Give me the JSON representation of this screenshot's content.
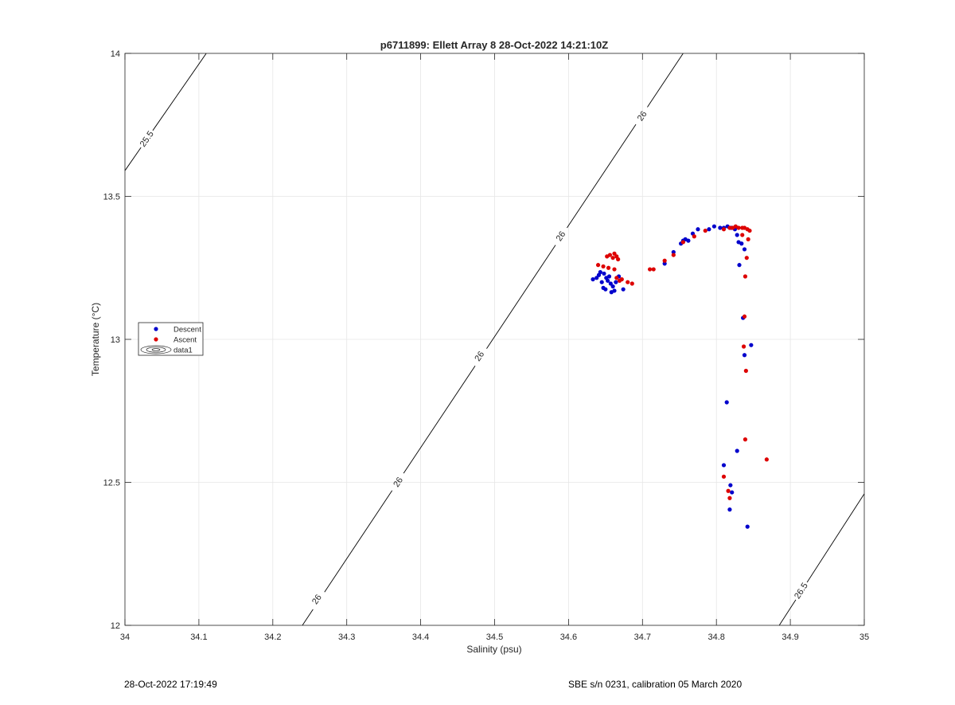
{
  "chart_data": {
    "type": "scatter",
    "title": "p6711899: Ellett Array 8 28-Oct-2022 14:21:10Z",
    "xlabel": "Salinity (psu)",
    "ylabel": "Temperature (°C)",
    "xlim": [
      34,
      35
    ],
    "ylim": [
      12,
      14
    ],
    "x_ticks": [
      "34",
      "34.1",
      "34.2",
      "34.3",
      "34.4",
      "34.5",
      "34.6",
      "34.7",
      "34.8",
      "34.9",
      "35"
    ],
    "y_ticks": [
      "12",
      "12.5",
      "13",
      "13.5",
      "14"
    ],
    "grid": true,
    "legend": {
      "placement": "middle-left",
      "entries": [
        "Descent",
        "Ascent",
        "data1"
      ]
    },
    "contours": [
      {
        "label": "25.5",
        "points": [
          [
            34.0,
            13.59
          ],
          [
            34.11,
            14.0
          ]
        ],
        "label_at": [
          [
            34.03,
            13.7
          ]
        ]
      },
      {
        "label": "26",
        "points": [
          [
            34.24,
            12.0
          ],
          [
            34.755,
            14.0
          ]
        ],
        "label_at": [
          [
            34.26,
            12.09
          ],
          [
            34.37,
            12.5
          ],
          [
            34.48,
            12.94
          ],
          [
            34.59,
            13.36
          ],
          [
            34.7,
            13.78
          ]
        ]
      },
      {
        "label": "26.5",
        "points": [
          [
            34.885,
            12.0
          ],
          [
            35.0,
            12.46
          ]
        ],
        "label_at": [
          [
            34.915,
            12.12
          ]
        ]
      }
    ],
    "series": [
      {
        "name": "Descent",
        "color": "#0000cc",
        "points": [
          [
            34.633,
            13.21
          ],
          [
            34.638,
            13.215
          ],
          [
            34.641,
            13.225
          ],
          [
            34.643,
            13.235
          ],
          [
            34.645,
            13.2
          ],
          [
            34.647,
            13.18
          ],
          [
            34.648,
            13.23
          ],
          [
            34.65,
            13.175
          ],
          [
            34.651,
            13.215
          ],
          [
            34.653,
            13.205
          ],
          [
            34.655,
            13.22
          ],
          [
            34.657,
            13.195
          ],
          [
            34.658,
            13.165
          ],
          [
            34.66,
            13.185
          ],
          [
            34.662,
            13.17
          ],
          [
            34.664,
            13.2
          ],
          [
            34.668,
            13.22
          ],
          [
            34.674,
            13.175
          ],
          [
            34.73,
            13.265
          ],
          [
            34.742,
            13.305
          ],
          [
            34.752,
            13.335
          ],
          [
            34.755,
            13.345
          ],
          [
            34.758,
            13.35
          ],
          [
            34.762,
            13.345
          ],
          [
            34.768,
            13.37
          ],
          [
            34.775,
            13.385
          ],
          [
            34.79,
            13.385
          ],
          [
            34.797,
            13.395
          ],
          [
            34.805,
            13.39
          ],
          [
            34.81,
            13.39
          ],
          [
            34.815,
            13.395
          ],
          [
            34.82,
            13.39
          ],
          [
            34.825,
            13.385
          ],
          [
            34.828,
            13.365
          ],
          [
            34.83,
            13.34
          ],
          [
            34.834,
            13.335
          ],
          [
            34.838,
            13.315
          ],
          [
            34.831,
            13.26
          ],
          [
            34.836,
            13.075
          ],
          [
            34.838,
            12.945
          ],
          [
            34.847,
            12.98
          ],
          [
            34.814,
            12.78
          ],
          [
            34.828,
            12.61
          ],
          [
            34.81,
            12.56
          ],
          [
            34.819,
            12.49
          ],
          [
            34.821,
            12.465
          ],
          [
            34.818,
            12.405
          ],
          [
            34.842,
            12.345
          ]
        ]
      },
      {
        "name": "Ascent",
        "color": "#dd0000",
        "points": [
          [
            34.64,
            13.26
          ],
          [
            34.647,
            13.255
          ],
          [
            34.652,
            13.29
          ],
          [
            34.656,
            13.295
          ],
          [
            34.66,
            13.285
          ],
          [
            34.662,
            13.3
          ],
          [
            34.665,
            13.29
          ],
          [
            34.667,
            13.28
          ],
          [
            34.654,
            13.25
          ],
          [
            34.662,
            13.245
          ],
          [
            34.665,
            13.215
          ],
          [
            34.669,
            13.205
          ],
          [
            34.672,
            13.21
          ],
          [
            34.68,
            13.2
          ],
          [
            34.686,
            13.195
          ],
          [
            34.71,
            13.245
          ],
          [
            34.715,
            13.245
          ],
          [
            34.73,
            13.275
          ],
          [
            34.742,
            13.295
          ],
          [
            34.755,
            13.34
          ],
          [
            34.77,
            13.36
          ],
          [
            34.785,
            13.38
          ],
          [
            34.81,
            13.385
          ],
          [
            34.818,
            13.39
          ],
          [
            34.822,
            13.39
          ],
          [
            34.826,
            13.395
          ],
          [
            34.83,
            13.39
          ],
          [
            34.835,
            13.39
          ],
          [
            34.838,
            13.39
          ],
          [
            34.842,
            13.385
          ],
          [
            34.845,
            13.38
          ],
          [
            34.835,
            13.365
          ],
          [
            34.843,
            13.35
          ],
          [
            34.841,
            13.285
          ],
          [
            34.839,
            13.22
          ],
          [
            34.838,
            13.08
          ],
          [
            34.837,
            12.975
          ],
          [
            34.84,
            12.89
          ],
          [
            34.839,
            12.65
          ],
          [
            34.868,
            12.58
          ],
          [
            34.81,
            12.52
          ],
          [
            34.816,
            12.47
          ],
          [
            34.818,
            12.445
          ]
        ]
      }
    ]
  },
  "footer": {
    "left": "28-Oct-2022 17:19:49",
    "right": "SBE s/n 0231, calibration 05 March 2020"
  }
}
